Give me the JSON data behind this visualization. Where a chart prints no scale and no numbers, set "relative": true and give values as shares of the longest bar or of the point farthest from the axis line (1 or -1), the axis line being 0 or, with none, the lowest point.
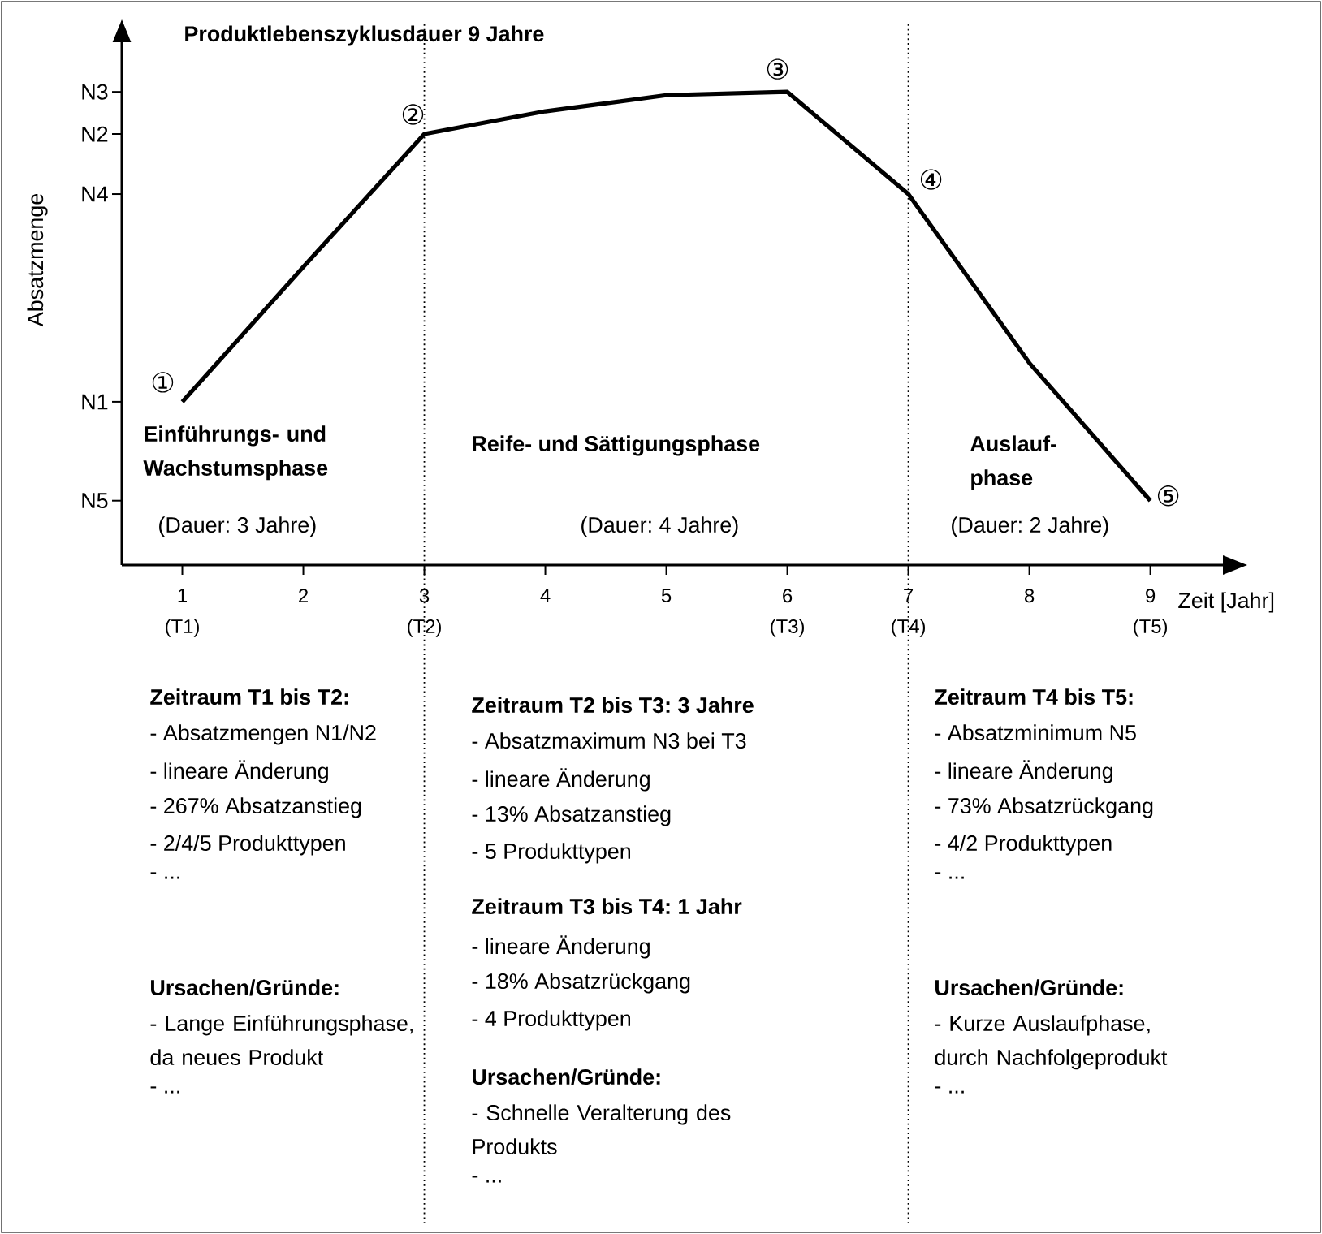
{
  "chart_data": {
    "type": "line",
    "title": "Produktlebenszyklusdauer 9 Jahre",
    "xlabel": "Zeit [Jahr]",
    "ylabel": "Absatzmenge",
    "relative": true,
    "x": [
      1,
      2,
      3,
      4,
      5,
      6,
      7,
      8,
      9
    ],
    "values": [
      0.345,
      0.63,
      0.911,
      0.959,
      0.993,
      1,
      0.784,
      0.427,
      0.136
    ],
    "color": "#000000",
    "line_style": "solid",
    "xlim": [
      0.5,
      9.6
    ],
    "xticks": [
      1,
      2,
      3,
      4,
      5,
      6,
      7,
      8,
      9
    ],
    "ref_lines": [
      {
        "axis": "x",
        "value": 3,
        "line_style": "dotted"
      },
      {
        "axis": "x",
        "value": 7,
        "line_style": "dotted"
      }
    ],
    "annotations": [
      "Einführungs- und Wachstumsphase",
      "(Dauer: 3 Jahre)",
      "Reife- und Sättigungsphase",
      "(Dauer: 4 Jahre)",
      "Auslauf-phase",
      "(Dauer: 2 Jahre)",
      "Zeitraum T1 bis T2:",
      "- Absatzmengen N1/N2",
      "- lineare Änderung",
      "- 267% Absatzanstieg",
      "- 2/4/5 Produkttypen",
      "- ...",
      "Ursachen/Gründe:",
      "- Lange Einführungsphase, da neues Produkt",
      "- ...",
      "Zeitraum T2 bis T3: 3 Jahre",
      "- Absatzmaximum N3 bei T3",
      "- lineare Änderung",
      "- 13% Absatzanstieg",
      "- 5 Produkttypen",
      "Zeitraum T3 bis T4: 1 Jahr",
      "- lineare Änderung",
      "- 18% Absatzrückgang",
      "- 4 Produkttypen",
      "Ursachen/Gründe:",
      "- Schnelle Veralterung des Produkts",
      "- ...",
      "Zeitraum T4 bis T5:",
      "- Absatzminimum N5",
      "- lineare Änderung",
      "- 73% Absatzrückgang",
      "- 4/2 Produkttypen",
      "- ...",
      "Ursachen/Gründe:",
      "- Kurze Auslaufphase, durch Nachfolgeprodukt",
      "- ...",
      {
        "text": "①",
        "x": 1,
        "y": 0.345
      },
      {
        "text": "②",
        "x": 3,
        "y": 0.911
      },
      {
        "text": "③",
        "x": 6,
        "y": 1
      },
      {
        "text": "④",
        "x": 7,
        "y": 0.784
      },
      {
        "text": "⑤",
        "x": 9,
        "y": 0.136
      },
      "N1",
      "N2",
      "N3",
      "N4",
      "N5",
      "(T1)",
      "(T2)",
      "(T3)",
      "(T4)",
      "(T5)"
    ]
  }
}
